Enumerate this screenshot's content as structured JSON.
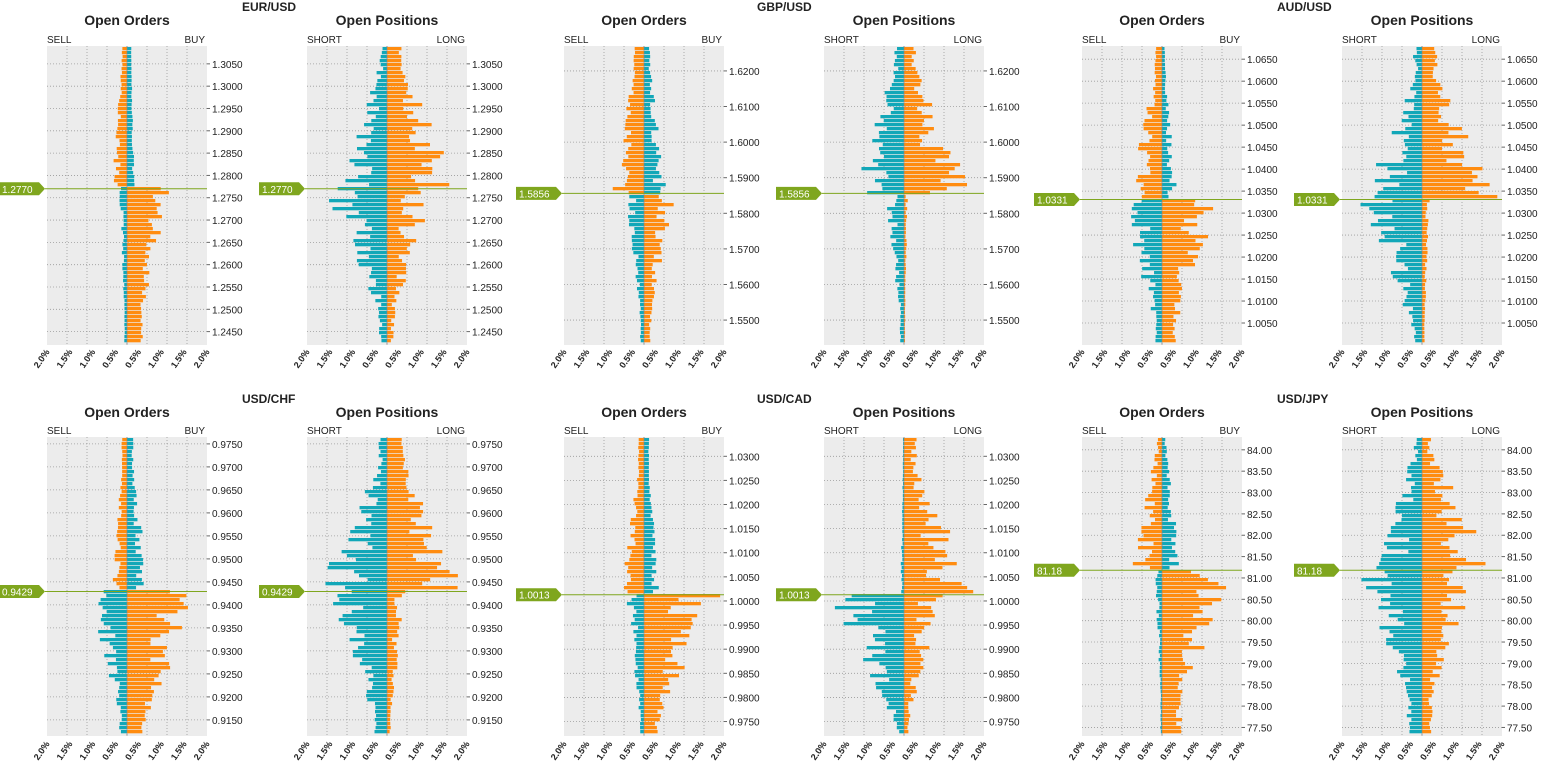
{
  "colors": {
    "orange": "#ff8c10",
    "teal": "#12a7b8",
    "price_line": "#7fa61e",
    "panel_bg": "#ececec",
    "grid": "#9a9a9a"
  },
  "panel_titles": {
    "orders": "Open Orders",
    "positions": "Open Positions"
  },
  "side_labels": {
    "sell": "SELL",
    "buy": "BUY",
    "short": "SHORT",
    "long": "LONG"
  },
  "x_ticks": [
    "2.0%",
    "1.5%",
    "1.0%",
    "0.5%",
    "0.5%",
    "1.0%",
    "1.5%",
    "2.0%"
  ],
  "chart_data": [
    {
      "type": "bar",
      "orientation": "horizontal",
      "pair": "EUR/USD",
      "current_price": "1.2770",
      "y_range": [
        1.242,
        1.309
      ],
      "x_range_pct": [
        -2.0,
        2.0
      ],
      "y_ticks": [
        "1.3050",
        "1.3000",
        "1.2950",
        "1.2900",
        "1.2850",
        "1.2800",
        "1.2750",
        "1.2700",
        "1.2650",
        "1.2600",
        "1.2550",
        "1.2500",
        "1.2450"
      ],
      "orders": {
        "above": {
          "left": [
            0.1,
            0.4
          ],
          "right": [
            0.1,
            0.2
          ]
        },
        "below": {
          "left": [
            0.05,
            0.2
          ],
          "right": [
            0.3,
            1.1
          ]
        }
      },
      "positions": {
        "above": {
          "left": [
            0.05,
            1.2
          ],
          "right": [
            0.2,
            1.9
          ]
        },
        "below": {
          "left": [
            0.05,
            1.6
          ],
          "right": [
            0.05,
            1.3
          ]
        }
      }
    },
    {
      "type": "bar",
      "orientation": "horizontal",
      "pair": "GBP/USD",
      "current_price": "1.5856",
      "y_range": [
        1.543,
        1.627
      ],
      "x_range_pct": [
        -2.0,
        2.0
      ],
      "y_ticks": [
        "1.6200",
        "1.6100",
        "1.6000",
        "1.5900",
        "1.5800",
        "1.5700",
        "1.5600",
        "1.5500"
      ],
      "orders": {
        "above": {
          "left": [
            0.2,
            0.8
          ],
          "right": [
            0.1,
            0.6
          ]
        },
        "below": {
          "left": [
            0.05,
            0.5
          ],
          "right": [
            0.1,
            0.8
          ]
        }
      },
      "positions": {
        "above": {
          "left": [
            0.1,
            1.4
          ],
          "right": [
            0.1,
            1.9
          ]
        },
        "below": {
          "left": [
            0.05,
            0.5
          ],
          "right": [
            0.02,
            0.1
          ]
        }
      }
    },
    {
      "type": "bar",
      "orientation": "horizontal",
      "pair": "AUD/USD",
      "current_price": "1.0331",
      "y_range": [
        1.0,
        1.068
      ],
      "x_range_pct": [
        -2.0,
        2.0
      ],
      "y_ticks": [
        "1.0650",
        "1.0600",
        "1.0550",
        "1.0500",
        "1.0450",
        "1.0400",
        "1.0350",
        "1.0300",
        "1.0250",
        "1.0200",
        "1.0150",
        "1.0100",
        "1.0050"
      ],
      "orders": {
        "above": {
          "left": [
            0.1,
            0.9
          ],
          "right": [
            0.05,
            0.4
          ]
        },
        "below": {
          "left": [
            0.05,
            1.1
          ],
          "right": [
            0.2,
            1.5
          ]
        }
      },
      "positions": {
        "above": {
          "left": [
            0.05,
            1.5
          ],
          "right": [
            0.2,
            2.0
          ]
        },
        "below": {
          "left": [
            0.1,
            1.6
          ],
          "right": [
            0.05,
            0.2
          ]
        }
      }
    },
    {
      "type": "bar",
      "orientation": "horizontal",
      "pair": "USD/CHF",
      "current_price": "0.9429",
      "y_range": [
        0.9115,
        0.9765
      ],
      "x_range_pct": [
        -2.0,
        2.0
      ],
      "y_ticks": [
        "0.9750",
        "0.9700",
        "0.9650",
        "0.9600",
        "0.9550",
        "0.9500",
        "0.9450",
        "0.9400",
        "0.9350",
        "0.9300",
        "0.9250",
        "0.9200",
        "0.9150"
      ],
      "orders": {
        "above": {
          "left": [
            0.1,
            0.4
          ],
          "right": [
            0.1,
            0.6
          ]
        },
        "below": {
          "left": [
            0.1,
            1.0
          ],
          "right": [
            0.3,
            2.0
          ]
        }
      },
      "positions": {
        "above": {
          "left": [
            0.05,
            1.8
          ],
          "right": [
            0.3,
            2.0
          ]
        },
        "below": {
          "left": [
            0.2,
            1.5
          ],
          "right": [
            0.05,
            0.5
          ]
        }
      }
    },
    {
      "type": "bar",
      "orientation": "horizontal",
      "pair": "USD/CAD",
      "current_price": "1.0013",
      "y_range": [
        0.972,
        1.034
      ],
      "x_range_pct": [
        -2.0,
        2.0
      ],
      "y_ticks": [
        "1.0300",
        "1.0250",
        "1.0200",
        "1.0150",
        "1.0100",
        "1.0050",
        "1.0000",
        "0.9950",
        "0.9900",
        "0.9850",
        "0.9800",
        "0.9750"
      ],
      "orders": {
        "above": {
          "left": [
            0.1,
            0.6
          ],
          "right": [
            0.1,
            0.4
          ]
        },
        "below": {
          "left": [
            0.05,
            0.5
          ],
          "right": [
            0.2,
            2.0
          ]
        }
      },
      "positions": {
        "above": {
          "left": [
            0.02,
            0.1
          ],
          "right": [
            0.1,
            2.0
          ]
        },
        "below": {
          "left": [
            0.05,
            2.0
          ],
          "right": [
            0.05,
            1.0
          ]
        }
      }
    },
    {
      "type": "bar",
      "orientation": "horizontal",
      "pair": "USD/JPY",
      "current_price": "81.18",
      "y_range": [
        77.3,
        84.3
      ],
      "x_range_pct": [
        -2.0,
        2.0
      ],
      "y_ticks": [
        "84.00",
        "83.50",
        "83.00",
        "82.50",
        "82.00",
        "81.50",
        "81.00",
        "80.50",
        "80.00",
        "79.50",
        "79.00",
        "78.50",
        "78.00",
        "77.50"
      ],
      "orders": {
        "above": {
          "left": [
            0.05,
            0.8
          ],
          "right": [
            0.05,
            0.5
          ]
        },
        "below": {
          "left": [
            0.02,
            0.2
          ],
          "right": [
            0.3,
            2.0
          ]
        }
      },
      "positions": {
        "above": {
          "left": [
            0.05,
            1.2
          ],
          "right": [
            0.05,
            1.9
          ]
        },
        "below": {
          "left": [
            0.2,
            1.7
          ],
          "right": [
            0.1,
            1.5
          ]
        }
      }
    }
  ]
}
